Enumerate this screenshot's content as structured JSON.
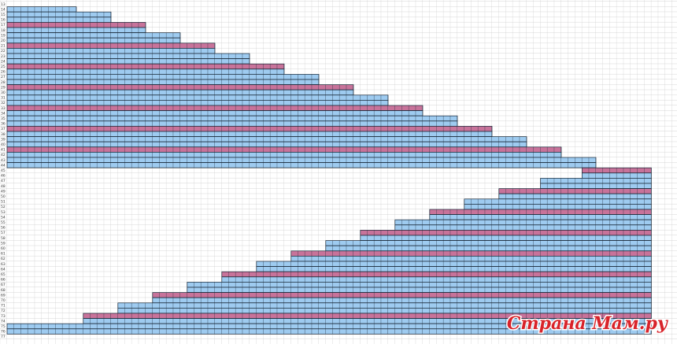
{
  "rows": [
    "13",
    "14",
    "15",
    "16",
    "17",
    "18",
    "19",
    "20",
    "21",
    "22",
    "23",
    "24",
    "25",
    "26",
    "27",
    "28",
    "29",
    "30",
    "31",
    "32",
    "33",
    "34",
    "35",
    "36",
    "37",
    "38",
    "39",
    "40",
    "41",
    "42",
    "43",
    "44",
    "45",
    "46",
    "47",
    "48",
    "49",
    "50",
    "51",
    "52",
    "53",
    "54",
    "55",
    "56",
    "57",
    "58",
    "59",
    "60",
    "61",
    "62",
    "63",
    "64",
    "65",
    "66",
    "67",
    "68",
    "69",
    "70",
    "71",
    "72",
    "73",
    "74",
    "75",
    "76",
    "77"
  ],
  "watermark": "Страна Мам.ру"
}
